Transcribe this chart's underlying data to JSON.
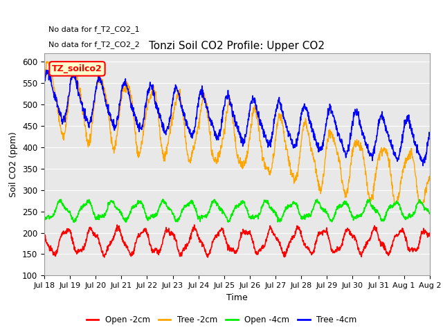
{
  "title": "Tonzi Soil CO2 Profile: Upper CO2",
  "xlabel": "Time",
  "ylabel": "Soil CO2 (ppm)",
  "ylim": [
    100,
    620
  ],
  "yticks": [
    100,
    150,
    200,
    250,
    300,
    350,
    400,
    450,
    500,
    550,
    600
  ],
  "no_data_text": [
    "No data for f_T2_CO2_1",
    "No data for f_T2_CO2_2"
  ],
  "legend_label_text": "TZ_soilco2",
  "series": {
    "open_2cm": {
      "color": "#ff0000",
      "label": "Open -2cm"
    },
    "tree_2cm": {
      "color": "#ffa500",
      "label": "Tree -2cm"
    },
    "open_4cm": {
      "color": "#00ee00",
      "label": "Open -4cm"
    },
    "tree_4cm": {
      "color": "#0000ff",
      "label": "Tree -4cm"
    }
  },
  "xtick_labels": [
    "Jul 18",
    "Jul 19",
    "Jul 20",
    "Jul 21",
    "Jul 22",
    "Jul 23",
    "Jul 24",
    "Jul 25",
    "Jul 26",
    "Jul 27",
    "Jul 28",
    "Jul 29",
    "Jul 30",
    "Jul 31",
    "Aug 1",
    "Aug 2"
  ],
  "background_color": "#ffffff",
  "plot_bg_color": "#e8e8e8",
  "grid_color": "#ffffff"
}
